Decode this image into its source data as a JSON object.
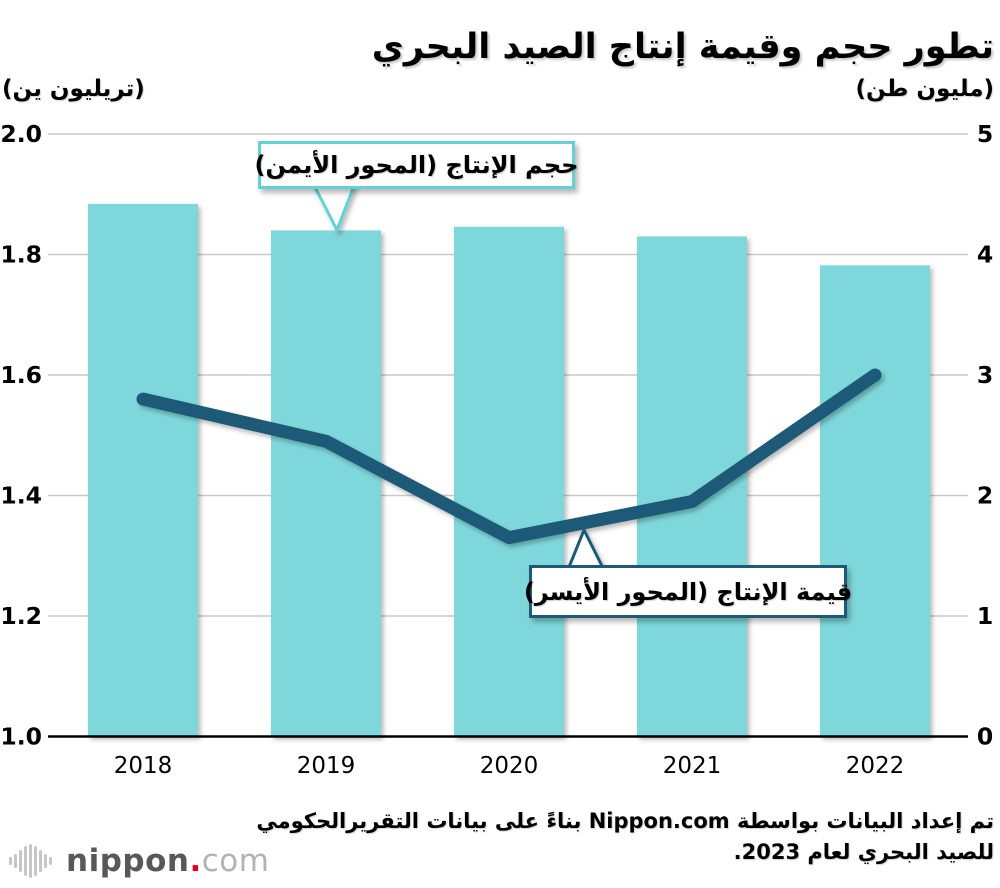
{
  "title": "تطور حجم وقيمة إنتاج الصيد البحري",
  "chart_data": {
    "type": "bar+line",
    "title": "تطور حجم وقيمة إنتاج الصيد البحري",
    "categories": [
      "2018",
      "2019",
      "2020",
      "2021",
      "2022"
    ],
    "series": [
      {
        "name": "حجم الإنتاج (المحور الأيمن)",
        "type": "bar",
        "axis": "right",
        "unit": "مليون طن",
        "values": [
          4.42,
          4.2,
          4.23,
          4.15,
          3.91
        ]
      },
      {
        "name": "قيمة الإنتاج (المحور الأيسر)",
        "type": "line",
        "axis": "left",
        "unit": "تريليون ين",
        "values": [
          1.56,
          1.49,
          1.33,
          1.39,
          1.6
        ]
      }
    ],
    "left_axis": {
      "label": "(تريليون ين)",
      "range": [
        1.0,
        2.0
      ],
      "ticks": [
        "2.0",
        "1.8",
        "1.6",
        "1.4",
        "1.2",
        "1.0"
      ]
    },
    "right_axis": {
      "label": "(مليون طن)",
      "range": [
        0,
        5
      ],
      "ticks": [
        "5",
        "4",
        "3",
        "2",
        "1",
        "0"
      ]
    },
    "grid": true,
    "legend_position": "callouts-inside-plot"
  },
  "callouts": {
    "volume": "حجم الإنتاج (المحور الأيمن)",
    "value": "قيمة الإنتاج (المحور الأيسر)"
  },
  "footer": {
    "line1": "تم إعداد البيانات بواسطة Nippon.com بناءً على بيانات التقريرالحكومي",
    "line2": "للصيد البحري لعام 2023."
  },
  "logo": {
    "name": "nippon",
    "dot": ".",
    "tld": "com"
  },
  "colors": {
    "bar": "#7ed8db",
    "line": "#1d5a78",
    "grid": "#c9c9c9",
    "axis": "#000000",
    "callout_volume_border": "#62d2d5",
    "callout_value_border": "#1d5a78",
    "logo_dark": "#595757",
    "logo_light": "#b3b3b4",
    "logo_red": "#e60012"
  }
}
